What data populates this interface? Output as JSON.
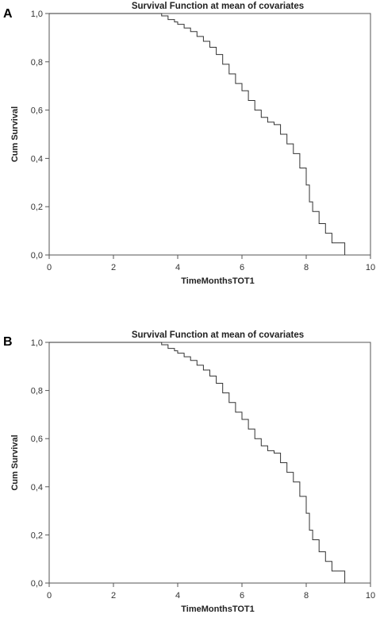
{
  "chart_data": [
    {
      "panel": "A",
      "type": "line",
      "title": "Survival Function at mean of covariates",
      "xlabel": "TimeMonthsTOT1",
      "ylabel": "Cum Survival",
      "xlim": [
        0,
        10
      ],
      "ylim": [
        0,
        1
      ],
      "xticks": [
        "0",
        "2",
        "4",
        "6",
        "8",
        "10"
      ],
      "yticks": [
        "0,0",
        "0,2",
        "0,4",
        "0,6",
        "0,8",
        "1,0"
      ],
      "grid": false,
      "step": true,
      "series": [
        {
          "x": [
            0,
            3.2,
            3.5,
            3.7,
            3.9,
            4.0,
            4.2,
            4.4,
            4.6,
            4.8,
            5.0,
            5.2,
            5.4,
            5.6,
            5.8,
            6.0,
            6.2,
            6.4,
            6.6,
            6.8,
            7.0,
            7.2,
            7.4,
            7.6,
            7.8,
            8.0,
            8.1,
            8.2,
            8.4,
            8.6,
            8.8,
            9.2
          ],
          "y": [
            1.0,
            1.0,
            0.99,
            0.975,
            0.965,
            0.955,
            0.94,
            0.925,
            0.905,
            0.885,
            0.86,
            0.83,
            0.79,
            0.75,
            0.71,
            0.68,
            0.64,
            0.6,
            0.57,
            0.55,
            0.54,
            0.5,
            0.46,
            0.42,
            0.36,
            0.29,
            0.22,
            0.18,
            0.13,
            0.09,
            0.05,
            0.0
          ]
        }
      ]
    },
    {
      "panel": "B",
      "type": "line",
      "title": "Survival Function at mean of covariates",
      "xlabel": "TimeMonthsTOT1",
      "ylabel": "Cum Survival",
      "xlim": [
        0,
        10
      ],
      "ylim": [
        0,
        1
      ],
      "xticks": [
        "0",
        "2",
        "4",
        "6",
        "8",
        "10"
      ],
      "yticks": [
        "0,0",
        "0,2",
        "0,4",
        "0,6",
        "0,8",
        "1,0"
      ],
      "grid": false,
      "step": true,
      "series": [
        {
          "x": [
            0,
            3.2,
            3.5,
            3.7,
            3.9,
            4.0,
            4.2,
            4.4,
            4.6,
            4.8,
            5.0,
            5.2,
            5.4,
            5.6,
            5.8,
            6.0,
            6.2,
            6.4,
            6.6,
            6.8,
            7.0,
            7.2,
            7.4,
            7.6,
            7.8,
            8.0,
            8.1,
            8.2,
            8.4,
            8.6,
            8.8,
            9.2
          ],
          "y": [
            1.0,
            1.0,
            0.99,
            0.975,
            0.965,
            0.955,
            0.94,
            0.925,
            0.905,
            0.885,
            0.86,
            0.83,
            0.79,
            0.75,
            0.71,
            0.68,
            0.64,
            0.6,
            0.57,
            0.55,
            0.54,
            0.5,
            0.46,
            0.42,
            0.36,
            0.29,
            0.22,
            0.18,
            0.13,
            0.09,
            0.05,
            0.0
          ]
        }
      ]
    }
  ]
}
